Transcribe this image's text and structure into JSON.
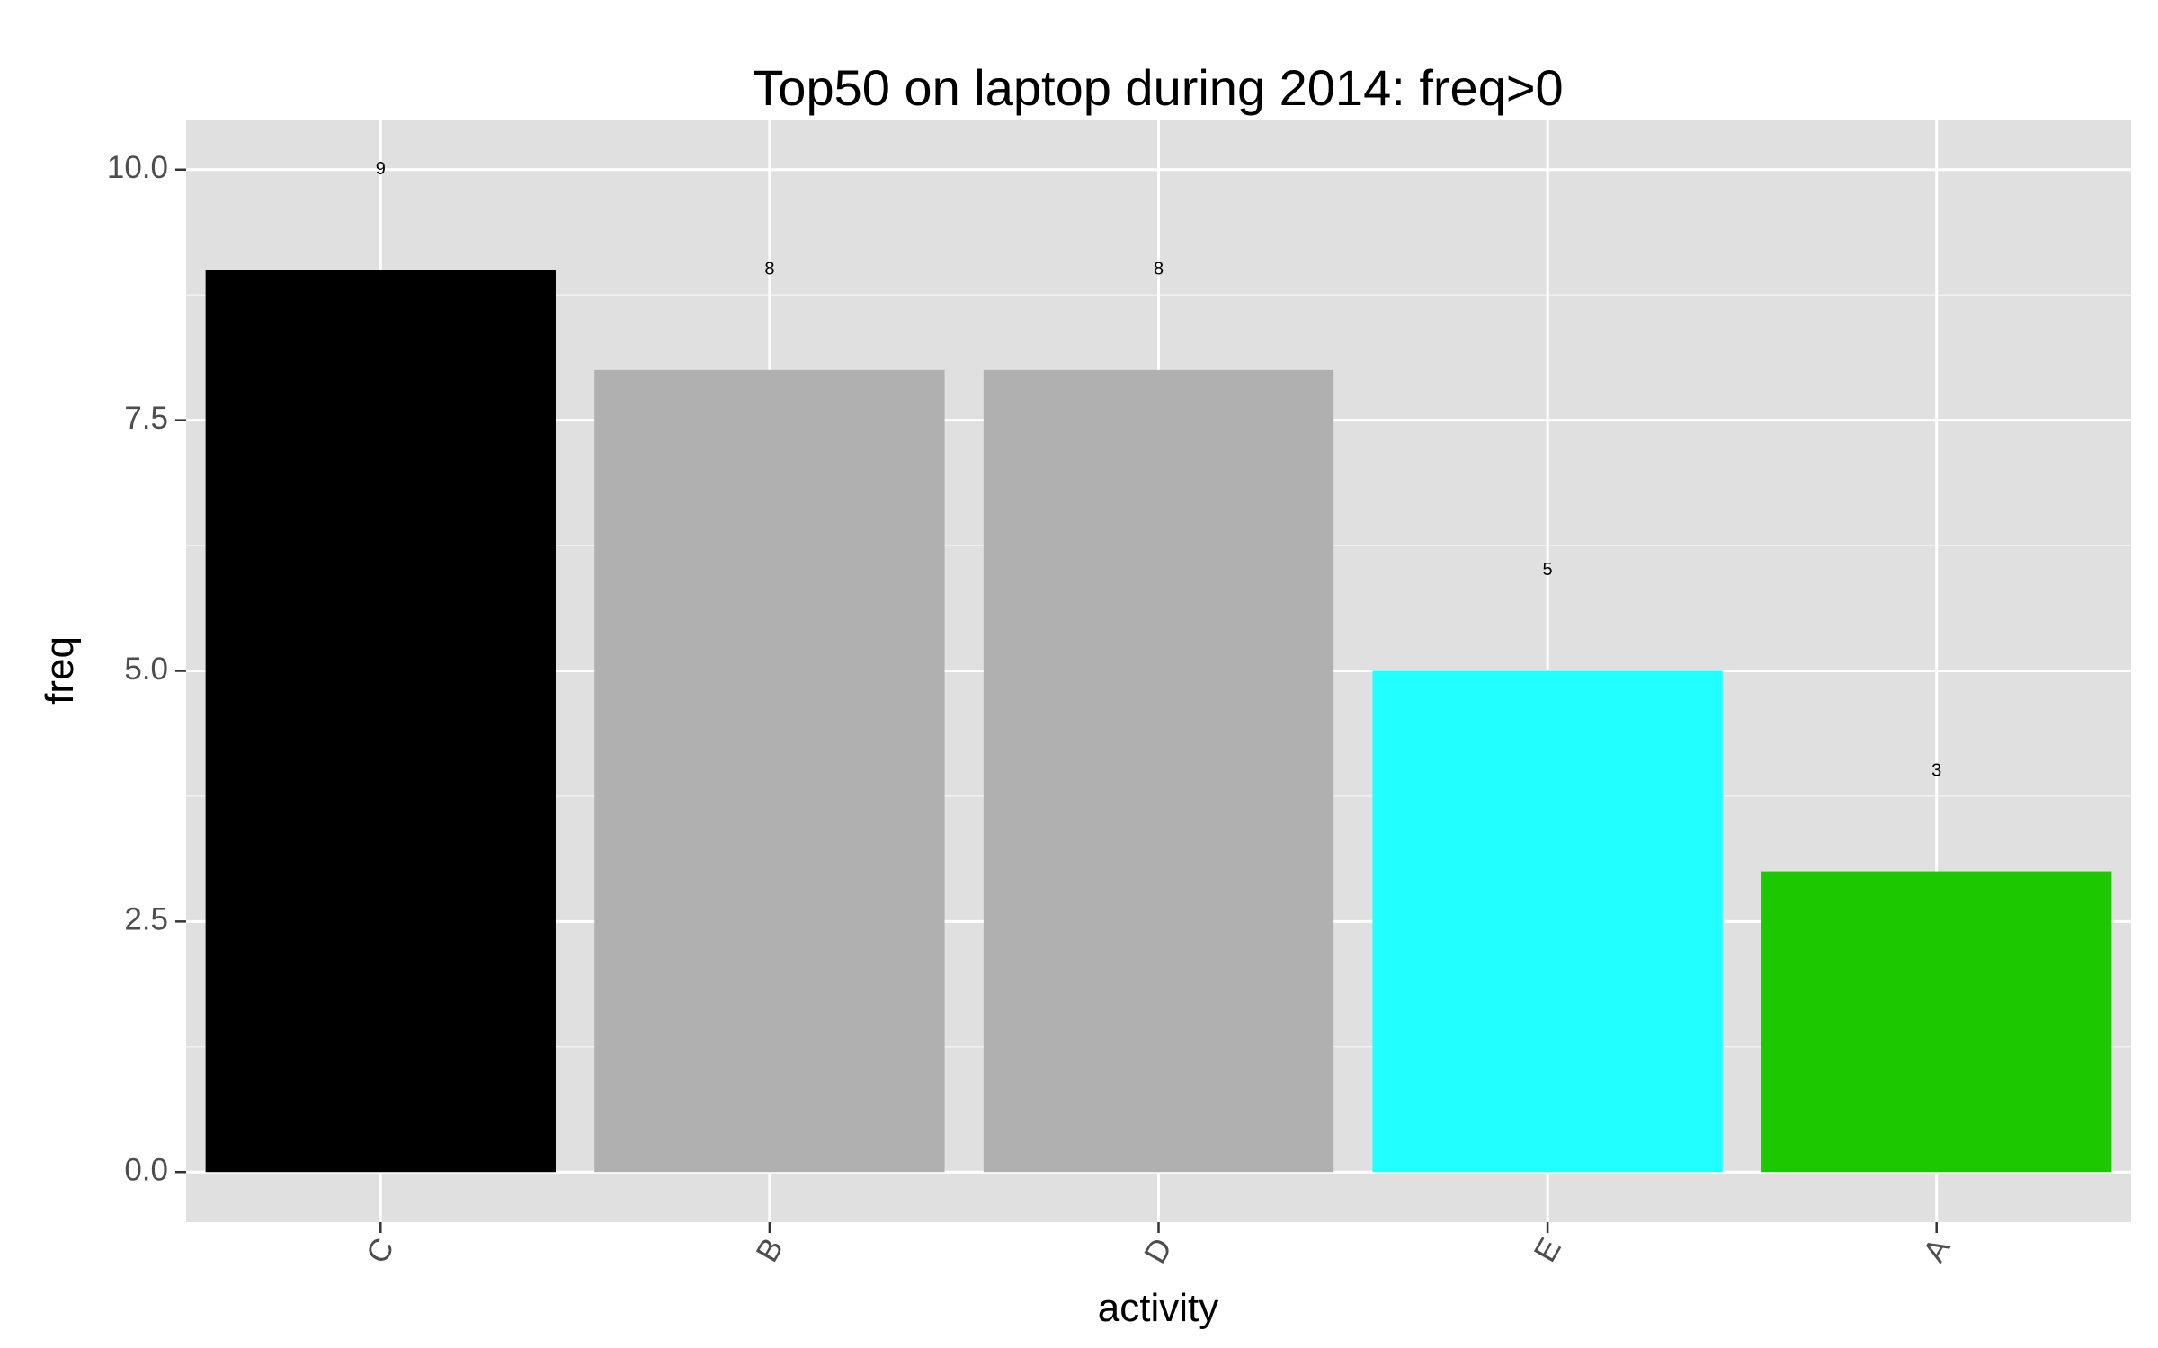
{
  "chart_data": {
    "type": "bar",
    "title": "Top50 on laptop during 2014: freq>0",
    "xlabel": "activity",
    "ylabel": "freq",
    "categories": [
      "C",
      "B",
      "D",
      "E",
      "A"
    ],
    "values": [
      9,
      8,
      8,
      5,
      3
    ],
    "data_labels": [
      "9",
      "8",
      "8",
      "5",
      "3"
    ],
    "bar_colors": [
      "#000000",
      "#B0B0B0",
      "#B0B0B0",
      "#22FFFF",
      "#1CC800"
    ],
    "ylim": [
      -0.5,
      10.5
    ],
    "yticks": [
      0,
      2.5,
      5,
      7.5,
      10
    ],
    "ytick_labels": [
      "0.0",
      "2.5",
      "5.0",
      "7.5",
      "10.0"
    ],
    "x_tick_rotation_deg": 60,
    "grid": true,
    "panel_background": "#E0E0E0",
    "grid_color": "#FFFFFF"
  }
}
